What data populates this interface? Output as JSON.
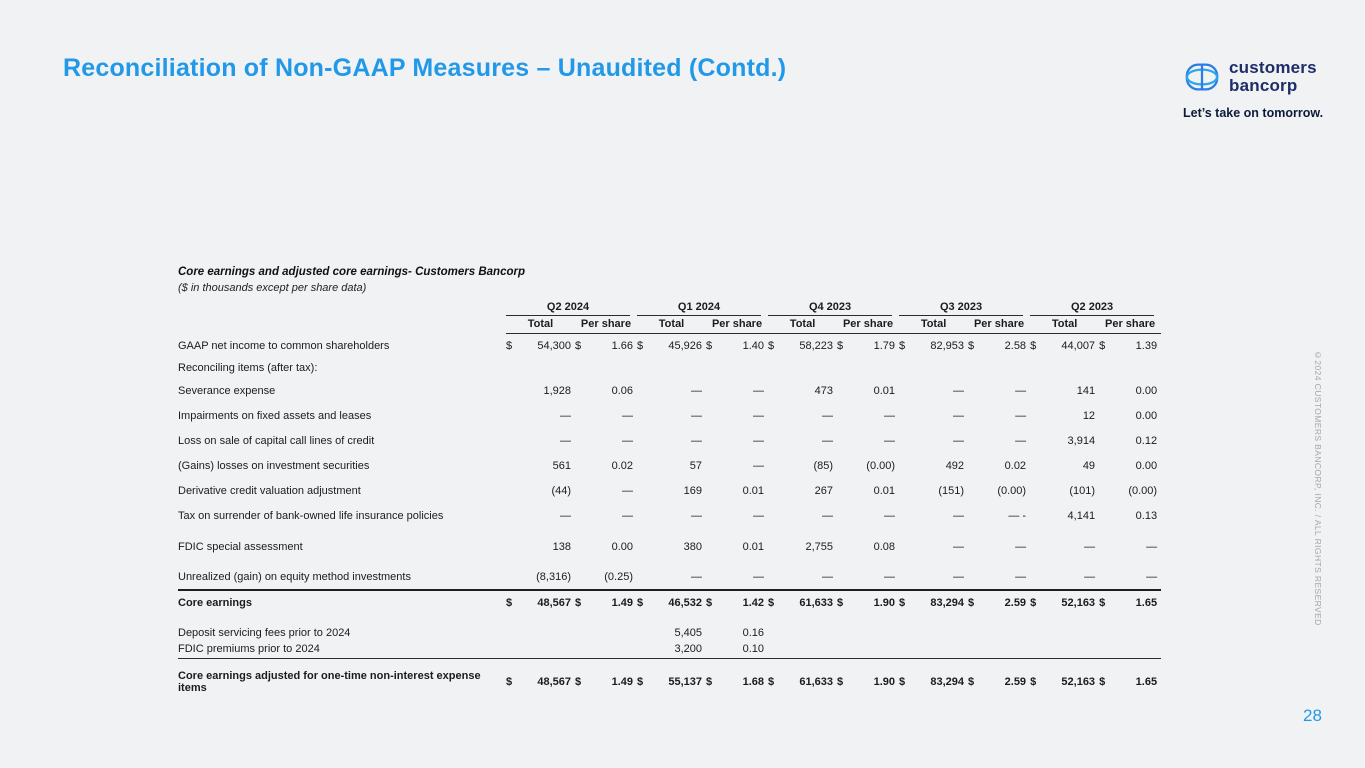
{
  "slide": {
    "title": "Reconciliation of Non-GAAP Measures – Unaudited (Contd.)",
    "page_number": "28",
    "copyright_vertical": "©2024 CUSTOMERS BANCORP, INC. / ALL RIGHTS RESERVED"
  },
  "logo": {
    "icon": "customers-bancorp-coin-icon",
    "name_line1": "customers",
    "name_line2": "bancorp",
    "tagline": "Let’s take on tomorrow."
  },
  "colors": {
    "accent_blue": "#2299e8",
    "navy": "#1e2d69",
    "background": "#f1f2f3",
    "rule_dark": "#1f1f1f"
  },
  "table": {
    "title": "Core earnings  and adjusted core earnings- Customers Bancorp",
    "subtitle": "($ in thousands except per share data)",
    "quarters": [
      "Q2 2024",
      "Q1 2024",
      "Q4 2023",
      "Q3 2023",
      "Q2 2023"
    ],
    "subheader": {
      "total": "Total",
      "per_share": "Per share"
    },
    "rows": [
      {
        "label": "GAAP net income to common shareholders",
        "type": "data",
        "dollar": true,
        "values": [
          "54,300",
          "1.66",
          "45,926",
          "1.40",
          "58,223",
          "1.79",
          "82,953",
          "2.58",
          "44,007",
          "1.39"
        ]
      },
      {
        "label": "Reconciling items (after tax):",
        "type": "section",
        "values": [
          "",
          "",
          "",
          "",
          "",
          "",
          "",
          "",
          "",
          ""
        ]
      },
      {
        "label": "Severance expense",
        "type": "data",
        "values": [
          "1,928",
          "0.06",
          "—",
          "—",
          "473",
          "0.01",
          "—",
          "—",
          "141",
          "0.00"
        ]
      },
      {
        "label": "Impairments on fixed assets and leases",
        "type": "data",
        "values": [
          "—",
          "—",
          "—",
          "—",
          "—",
          "—",
          "—",
          "—",
          "12",
          "0.00"
        ]
      },
      {
        "label": "Loss on sale of capital call lines of credit",
        "type": "data",
        "values": [
          "—",
          "—",
          "—",
          "—",
          "—",
          "—",
          "—",
          "—",
          "3,914",
          "0.12"
        ]
      },
      {
        "label": "(Gains) losses on investment securities",
        "type": "data",
        "values": [
          "561",
          "0.02",
          "57",
          "—",
          "(85)",
          "(0.00)",
          "492",
          "0.02",
          "49",
          "0.00"
        ]
      },
      {
        "label": "Derivative credit valuation adjustment",
        "type": "data",
        "values": [
          "(44)",
          "—",
          "169",
          "0.01",
          "267",
          "0.01",
          "(151)",
          "(0.00)",
          "(101)",
          "(0.00)"
        ]
      },
      {
        "label": "Tax on surrender of bank-owned life insurance policies",
        "type": "data",
        "values": [
          "—",
          "—",
          "—",
          "—",
          "—",
          "—",
          "—",
          "— -",
          "4,141",
          "0.13"
        ]
      },
      {
        "type": "spacer",
        "size": "xs"
      },
      {
        "label": "FDIC special assessment",
        "type": "data",
        "values": [
          "138",
          "0.00",
          "380",
          "0.01",
          "2,755",
          "0.08",
          "—",
          "—",
          "—",
          "—"
        ]
      },
      {
        "type": "spacer",
        "size": "xs"
      },
      {
        "label": "Unrealized (gain) on equity method investments",
        "type": "data",
        "rule_below": "thick",
        "values": [
          "(8,316)",
          "(0.25)",
          "—",
          "—",
          "—",
          "—",
          "—",
          "—",
          "—",
          "—"
        ]
      },
      {
        "label": "Core earnings",
        "type": "total",
        "dollar": true,
        "values": [
          "48,567",
          "1.49",
          "46,532",
          "1.42",
          "61,633",
          "1.90",
          "83,294",
          "2.59",
          "52,163",
          "1.65"
        ]
      },
      {
        "type": "spacer",
        "size": "lg"
      },
      {
        "label": "Deposit servicing fees prior to 2024",
        "type": "minor",
        "values": [
          "",
          "",
          "5,405",
          "0.16",
          "",
          "",
          "",
          "",
          "",
          ""
        ]
      },
      {
        "label": "FDIC premiums prior to 2024",
        "type": "minor",
        "rule_below": "thin",
        "values": [
          "",
          "",
          "3,200",
          "0.10",
          "",
          "",
          "",
          "",
          "",
          ""
        ]
      },
      {
        "type": "spacer",
        "size": "md"
      },
      {
        "label": "Core earnings adjusted for one-time non-interest expense items",
        "type": "total",
        "dollar": true,
        "values": [
          "48,567",
          "1.49",
          "55,137",
          "1.68",
          "61,633",
          "1.90",
          "83,294",
          "2.59",
          "52,163",
          "1.65"
        ]
      }
    ]
  }
}
